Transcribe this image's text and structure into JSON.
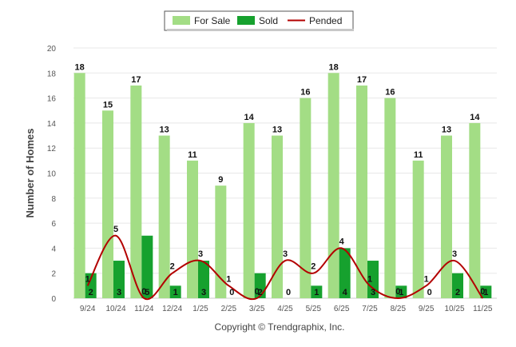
{
  "chart_data": {
    "type": "bar",
    "categories": [
      "9/24",
      "10/24",
      "11/24",
      "12/24",
      "1/25",
      "2/25",
      "3/25",
      "4/25",
      "5/25",
      "6/25",
      "7/25",
      "8/25",
      "9/25",
      "10/25",
      "11/25"
    ],
    "series": [
      {
        "name": "For Sale",
        "kind": "bar",
        "color": "#a3dd85",
        "values": [
          18,
          15,
          17,
          13,
          11,
          9,
          14,
          13,
          16,
          18,
          17,
          16,
          11,
          13,
          14
        ]
      },
      {
        "name": "Sold",
        "kind": "bar",
        "color": "#16a12e",
        "values": [
          2,
          3,
          5,
          1,
          3,
          0,
          2,
          0,
          1,
          4,
          3,
          1,
          0,
          2,
          1
        ]
      },
      {
        "name": "Pended",
        "kind": "line",
        "color": "#b30000",
        "values": [
          1,
          5,
          0,
          2,
          3,
          1,
          0,
          3,
          2,
          4,
          1,
          0,
          1,
          3,
          0
        ]
      }
    ],
    "xlabel": "",
    "ylabel": "Number of Homes",
    "ylim": [
      0,
      20
    ],
    "yticks": [
      0,
      2,
      4,
      6,
      8,
      10,
      12,
      14,
      16,
      18,
      20
    ],
    "grid": true,
    "legend": "top-center"
  },
  "copyright": "Copyright © Trendgraphix, Inc."
}
